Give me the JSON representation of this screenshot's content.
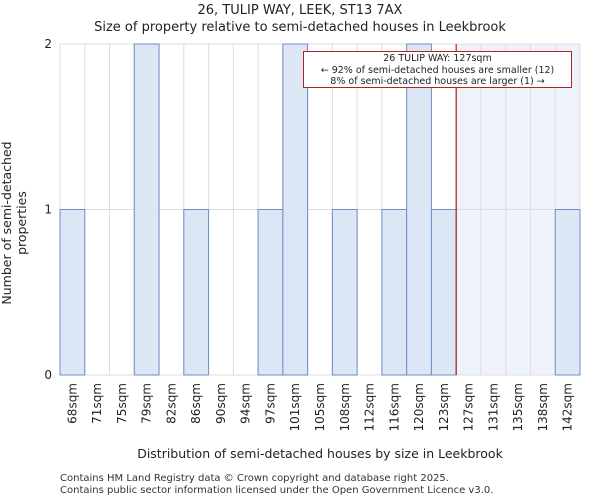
{
  "title": "26, TULIP WAY, LEEK, ST13 7AX",
  "subtitle": "Size of property relative to semi-detached houses in Leekbrook",
  "annotation": {
    "line1": "26 TULIP WAY: 127sqm",
    "line2": "← 92% of semi-detached houses are smaller (12)",
    "line3": "8% of semi-detached houses are larger (1) →"
  },
  "footer": {
    "line1": "Contains HM Land Registry data © Crown copyright and database right 2025.",
    "line2": "Contains public sector information licensed under the Open Government Licence v3.0."
  },
  "colors": {
    "bar_fill": "#dce6f4",
    "bar_stroke": "#6c8ec9",
    "marker": "#b22222",
    "highlight": "#eef3fb",
    "grid": "#dddddd"
  },
  "chart_data": {
    "type": "bar",
    "title": "26, TULIP WAY, LEEK, ST13 7AX",
    "subtitle": "Size of property relative to semi-detached houses in Leekbrook",
    "xlabel": "Distribution of semi-detached houses by size in Leekbrook",
    "ylabel": "Number of semi-detached properties",
    "categories": [
      "68sqm",
      "71sqm",
      "75sqm",
      "79sqm",
      "82sqm",
      "86sqm",
      "90sqm",
      "94sqm",
      "97sqm",
      "101sqm",
      "105sqm",
      "108sqm",
      "112sqm",
      "116sqm",
      "120sqm",
      "123sqm",
      "127sqm",
      "131sqm",
      "135sqm",
      "138sqm",
      "142sqm"
    ],
    "values": [
      1,
      0,
      0,
      2,
      0,
      1,
      0,
      0,
      1,
      2,
      0,
      1,
      0,
      1,
      2,
      1,
      0,
      0,
      0,
      0,
      1
    ],
    "ylim": [
      0,
      2
    ],
    "yticks": [
      0,
      1,
      2
    ],
    "grid": true,
    "marker": {
      "label": "26 TULIP WAY: 127sqm",
      "value": 127
    }
  }
}
